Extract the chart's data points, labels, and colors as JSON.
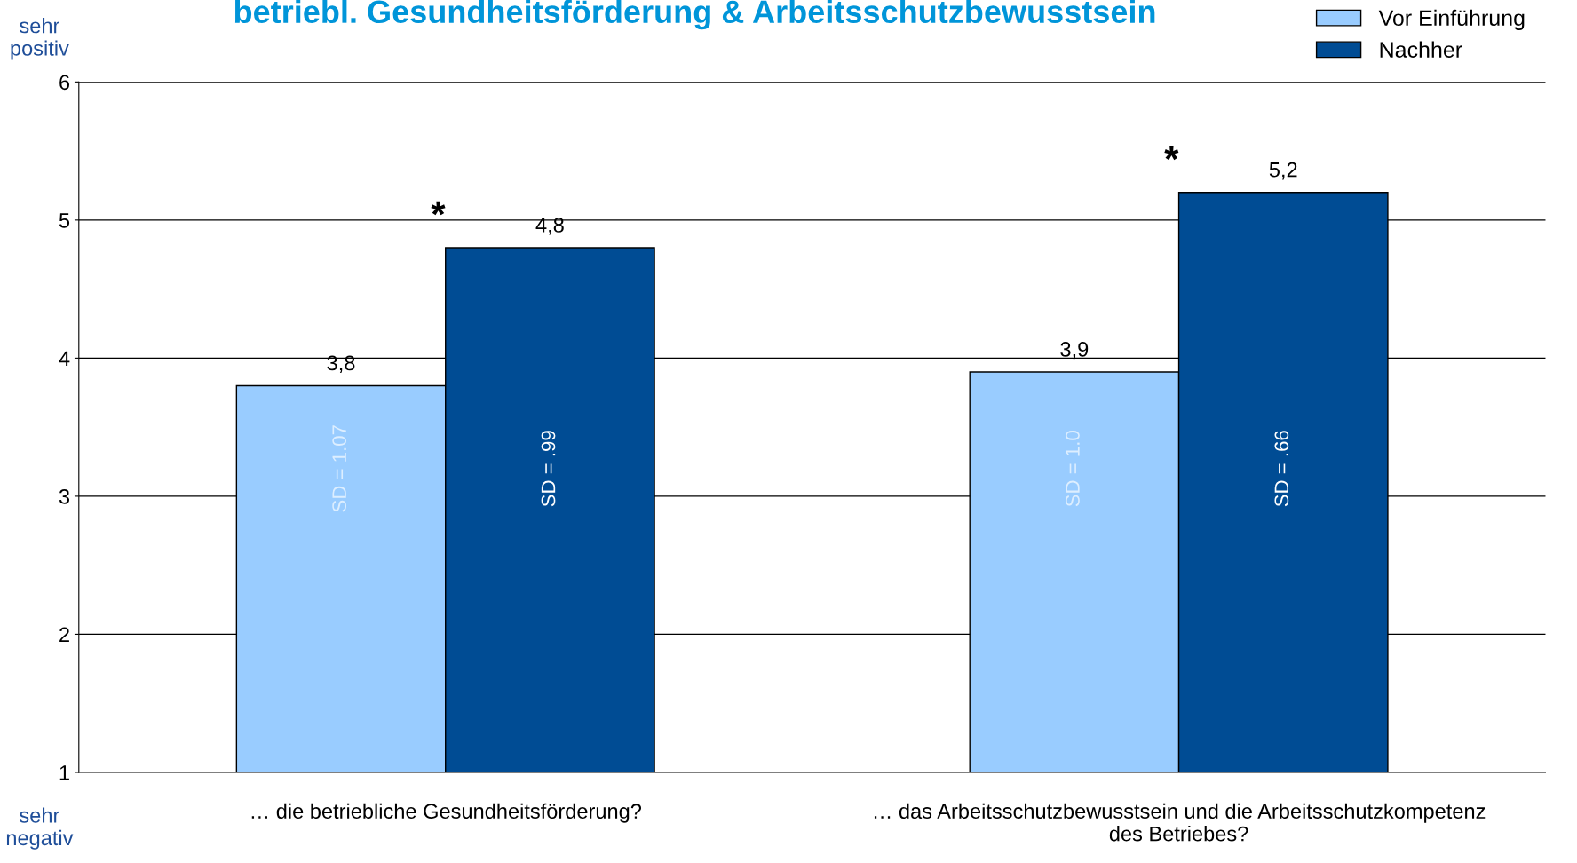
{
  "chart_data": {
    "type": "bar",
    "title": "betriebl. Gesundheitsförderung & Arbeitsschutzbewusstsein",
    "categories": [
      "… die betriebliche Gesundheitsförderung?",
      "… das Arbeitsschutzbewusstsein und die Arbeitsschutzkompetenz\ndes Betriebes?"
    ],
    "series": [
      {
        "name": "Vor Einführung",
        "color": "#99ccff",
        "values": [
          3.8,
          3.9
        ],
        "value_labels": [
          "3,8",
          "3,9"
        ]
      },
      {
        "name": "Nachher",
        "color": "#004c94",
        "values": [
          4.8,
          5.2
        ],
        "value_labels": [
          "4,8",
          "5,2"
        ]
      }
    ],
    "ylim": [
      1,
      6
    ],
    "yticks": [
      1,
      2,
      3,
      4,
      5,
      6
    ],
    "grid": "y",
    "legend": "top right",
    "annotations": [
      "SD = 1.07",
      "SD = 1.0",
      "SD = .99",
      "SD = .66",
      "*",
      "*",
      "sehr\npositiv",
      "sehr\nnegativ"
    ]
  }
}
